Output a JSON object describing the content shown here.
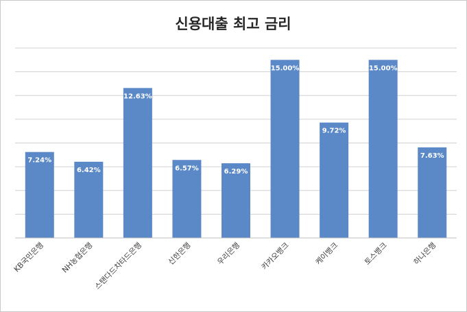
{
  "chart_data": {
    "type": "bar",
    "title": "신용대출 최고 금리",
    "categories": [
      "KB국민은행",
      "NH농협은행",
      "스탠다드차타드은행",
      "신한은행",
      "우리은행",
      "카카오뱅크",
      "케이뱅크",
      "토스뱅크",
      "하나은행"
    ],
    "values": [
      7.24,
      6.42,
      12.63,
      6.57,
      6.29,
      15.0,
      9.72,
      15.0,
      7.63
    ],
    "value_labels": [
      "7.24%",
      "6.42%",
      "12.63%",
      "6.57%",
      "6.29%",
      "15.00%",
      "9.72%",
      "15.00%",
      "7.63%"
    ],
    "color": "#5b89c8",
    "ylim": [
      0,
      16
    ],
    "yticks": [
      0,
      2,
      4,
      6,
      8,
      10,
      12,
      14,
      16
    ],
    "grid": true
  }
}
